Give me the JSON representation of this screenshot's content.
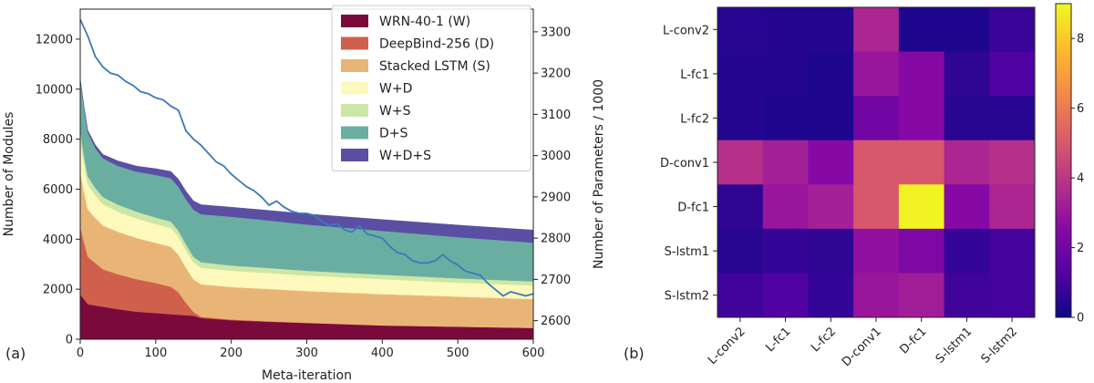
{
  "chart_data": [
    {
      "panel_label": "(a)",
      "type": "area",
      "stacked": true,
      "xlabel": "Meta-iteration",
      "ylabel": "Number of Modules",
      "ylabel_right": "Number of Parameters / 1000",
      "xlim": [
        0,
        600
      ],
      "ylim": [
        0,
        13200
      ],
      "ylim_right": [
        2555,
        3355
      ],
      "x_ticks": [
        0,
        100,
        200,
        300,
        400,
        500,
        600
      ],
      "y_ticks": [
        0,
        2000,
        4000,
        6000,
        8000,
        10000,
        12000
      ],
      "y_ticks_right": [
        2600,
        2700,
        2800,
        2900,
        3000,
        3100,
        3200,
        3300
      ],
      "legend_position": "top-right",
      "x": [
        0,
        5,
        10,
        20,
        30,
        50,
        75,
        100,
        120,
        130,
        140,
        150,
        160,
        200,
        250,
        300,
        400,
        500,
        600
      ],
      "series": [
        {
          "name": "WRN-40-1 (W)",
          "color": "#7a0a3c",
          "values": [
            1800,
            1600,
            1400,
            1350,
            1300,
            1200,
            1100,
            1050,
            1000,
            980,
            960,
            940,
            850,
            760,
            700,
            650,
            550,
            500,
            450
          ]
        },
        {
          "name": "DeepBind-256 (D)",
          "color": "#d0604b",
          "values": [
            2700,
            2300,
            1900,
            1700,
            1500,
            1400,
            1300,
            1200,
            1100,
            900,
            500,
            150,
            50,
            30,
            20,
            10,
            5,
            5,
            5
          ]
        },
        {
          "name": "Stacked LSTM (S)",
          "color": "#e9b577",
          "values": [
            2200,
            2000,
            1900,
            1800,
            1750,
            1700,
            1650,
            1600,
            1600,
            1500,
            1400,
            1300,
            1300,
            1300,
            1290,
            1270,
            1250,
            1200,
            1150
          ]
        },
        {
          "name": "W+D",
          "color": "#fdf8bb",
          "values": [
            1300,
            1100,
            1000,
            900,
            850,
            800,
            780,
            760,
            750,
            720,
            700,
            680,
            660,
            650,
            640,
            620,
            600,
            560,
            550
          ]
        },
        {
          "name": "W+S",
          "color": "#cce6a6",
          "values": [
            400,
            350,
            320,
            300,
            290,
            280,
            270,
            260,
            260,
            250,
            240,
            230,
            220,
            210,
            200,
            190,
            180,
            170,
            160
          ]
        },
        {
          "name": "D+S",
          "color": "#6aaea2",
          "values": [
            2000,
            1900,
            1750,
            1600,
            1550,
            1550,
            1600,
            1700,
            1730,
            1750,
            1800,
            1880,
            1920,
            1950,
            1900,
            1850,
            1750,
            1650,
            1550
          ]
        },
        {
          "name": "W+D+S",
          "color": "#5a4fa2",
          "values": [
            0,
            50,
            80,
            120,
            150,
            200,
            220,
            250,
            270,
            300,
            320,
            350,
            380,
            380,
            400,
            420,
            450,
            480,
            500
          ]
        }
      ],
      "line_series": {
        "axis": "right",
        "color": "#3a7ab8",
        "x": [
          0,
          10,
          20,
          30,
          40,
          50,
          60,
          70,
          80,
          90,
          100,
          110,
          120,
          130,
          140,
          150,
          160,
          170,
          180,
          190,
          200,
          210,
          220,
          230,
          240,
          250,
          260,
          270,
          280,
          290,
          300,
          310,
          320,
          330,
          340,
          350,
          360,
          370,
          380,
          390,
          400,
          410,
          420,
          430,
          440,
          450,
          460,
          470,
          480,
          490,
          500,
          510,
          520,
          530,
          540,
          550,
          560,
          570,
          580,
          590,
          600
        ],
        "values": [
          3330,
          3290,
          3240,
          3215,
          3200,
          3195,
          3180,
          3170,
          3155,
          3150,
          3140,
          3135,
          3120,
          3110,
          3060,
          3040,
          3025,
          3005,
          2985,
          2975,
          2955,
          2940,
          2925,
          2915,
          2900,
          2880,
          2890,
          2875,
          2865,
          2860,
          2860,
          2855,
          2840,
          2830,
          2835,
          2820,
          2815,
          2830,
          2810,
          2805,
          2800,
          2780,
          2765,
          2760,
          2745,
          2740,
          2740,
          2745,
          2760,
          2745,
          2735,
          2720,
          2715,
          2710,
          2690,
          2675,
          2660,
          2670,
          2665,
          2660,
          2665
        ]
      }
    },
    {
      "panel_label": "(b)",
      "type": "heatmap",
      "rows": [
        "L-conv2",
        "L-fc1",
        "L-fc2",
        "D-conv1",
        "D-fc1",
        "S-lstm1",
        "S-lstm2"
      ],
      "cols": [
        "L-conv2",
        "L-fc1",
        "L-fc2",
        "D-conv1",
        "D-fc1",
        "S-lstm1",
        "S-lstm2"
      ],
      "values": [
        [
          0.5,
          0.4,
          0.4,
          3.5,
          0.3,
          0.3,
          0.8
        ],
        [
          0.4,
          0.4,
          0.3,
          3.0,
          2.5,
          0.6,
          1.2
        ],
        [
          0.4,
          0.3,
          0.3,
          2.0,
          2.5,
          0.5,
          0.5
        ],
        [
          3.8,
          3.3,
          2.5,
          5.0,
          5.0,
          3.5,
          3.8
        ],
        [
          0.6,
          3.0,
          3.3,
          5.0,
          8.9,
          2.5,
          3.5
        ],
        [
          0.5,
          0.7,
          0.6,
          2.8,
          2.3,
          0.7,
          1.0
        ],
        [
          0.9,
          1.2,
          0.7,
          3.0,
          3.2,
          0.9,
          1.0
        ]
      ],
      "colormap": "plasma",
      "colorbar_range": [
        0,
        9
      ],
      "colorbar_ticks": [
        0,
        2,
        4,
        6,
        8
      ]
    }
  ]
}
